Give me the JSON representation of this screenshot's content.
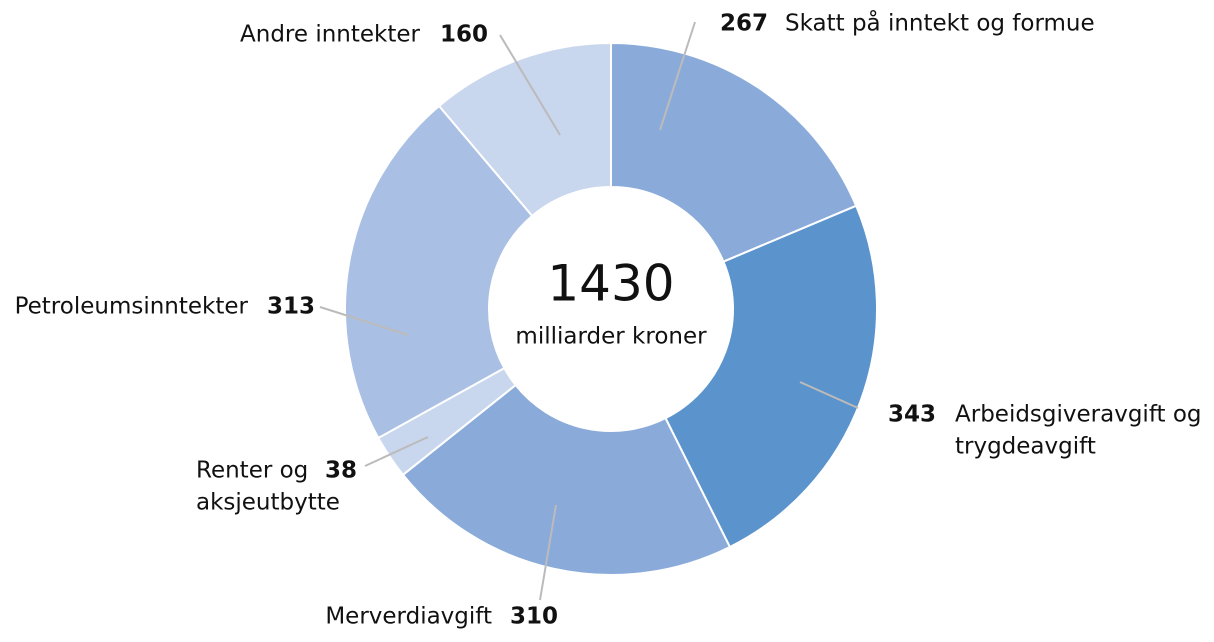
{
  "chart_data": {
    "type": "donut",
    "total": 1430,
    "total_label": "milliarder kroner",
    "categories": [
      [
        "Skatt på inntekt og formue"
      ],
      [
        "Arbeidsgiveravgift og",
        "trygdeavgift"
      ],
      [
        "Merverdiavgift"
      ],
      [
        "Renter og",
        "aksjeutbytte"
      ],
      [
        "Petroleumsinntekter"
      ],
      [
        "Andre inntekter"
      ]
    ],
    "values": [
      267,
      343,
      310,
      38,
      313,
      160
    ],
    "colors": [
      "#8aabda",
      "#5b93cc",
      "#8aabda",
      "#c8d6ee",
      "#a9bfe3",
      "#c8d6ee"
    ]
  }
}
